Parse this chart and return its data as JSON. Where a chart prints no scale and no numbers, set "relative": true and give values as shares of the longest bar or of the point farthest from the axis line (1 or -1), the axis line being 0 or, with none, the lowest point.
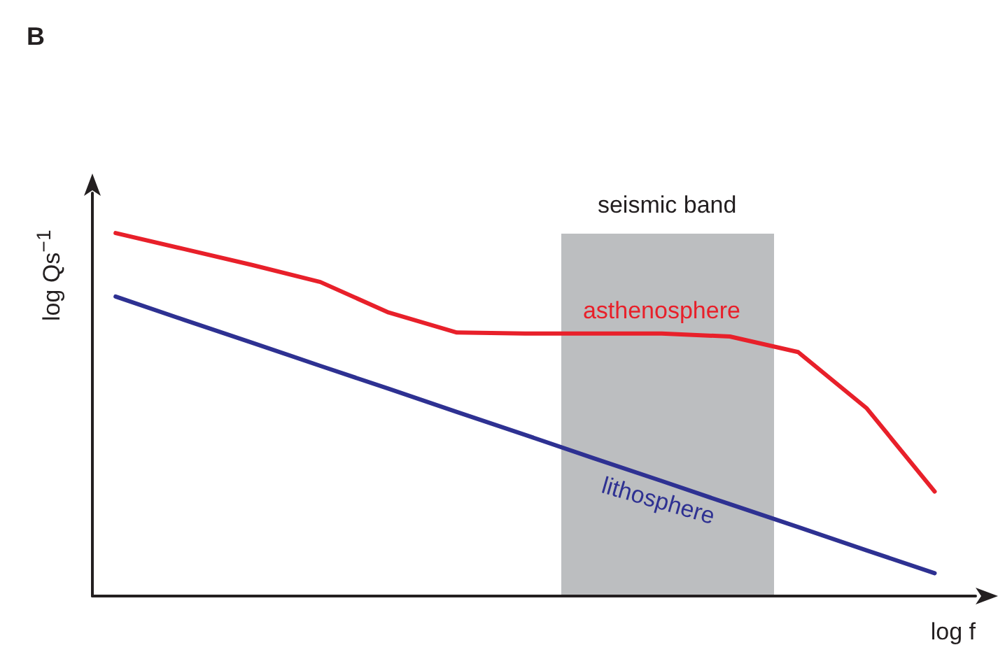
{
  "chart_data": {
    "type": "line",
    "title": "B",
    "xlabel": "log f",
    "ylabel": "log Qs$^{−1}$",
    "relative": true,
    "categories": [
      null,
      null,
      null,
      null,
      null,
      null,
      null,
      null,
      null,
      null,
      null,
      null,
      null
    ],
    "series": [
      {
        "name": "asthenosphere",
        "color": "#e8202a",
        "values": [
          1,
          0.956,
          0.912,
          0.865,
          0.781,
          0.726,
          0.723,
          0.723,
          0.723,
          0.715,
          0.672,
          0.518,
          0.288
        ]
      },
      {
        "name": "lithosphere",
        "color": "#2e3192",
        "values": [
          0.825,
          0.761,
          0.698,
          0.634,
          0.571,
          0.507,
          0.444,
          0.38,
          0.317,
          0.253,
          0.19,
          0.126,
          0.063
        ]
      }
    ],
    "annotations": [
      "seismic band"
    ],
    "tick_labels": false,
    "grid": false,
    "legend": false,
    "marker": "none",
    "line_style": "solid"
  }
}
